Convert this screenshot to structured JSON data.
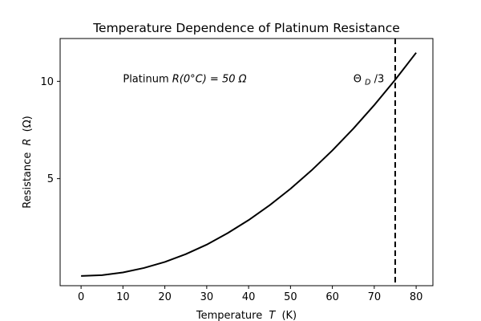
{
  "chart_data": {
    "type": "line",
    "title": "Temperature Dependence of Platinum Resistance",
    "xlabel": "Temperature",
    "xlabel_symbol": "T",
    "xlabel_unit": "(K)",
    "ylabel": "Resistance",
    "ylabel_symbol": "R",
    "ylabel_unit": "(Ω)",
    "xlim": [
      -5,
      84
    ],
    "ylim": [
      -0.5,
      12.2
    ],
    "xticks": [
      0,
      10,
      20,
      30,
      40,
      50,
      60,
      70,
      80
    ],
    "yticks": [
      5,
      10
    ],
    "grid": false,
    "series": [
      {
        "color": "#000000",
        "x": [
          0,
          5,
          10,
          15,
          20,
          25,
          30,
          35,
          40,
          45,
          50,
          55,
          60,
          65,
          70,
          75,
          80
        ],
        "y": [
          0.0,
          0.04,
          0.18,
          0.41,
          0.72,
          1.12,
          1.61,
          2.2,
          2.87,
          3.63,
          4.48,
          5.42,
          6.45,
          7.57,
          8.78,
          10.08,
          11.47
        ]
      }
    ],
    "vline": {
      "x": 75,
      "style": "dashed",
      "color": "#000000"
    },
    "annotations": [
      {
        "id": "platinum-note",
        "x": 10,
        "y": 10,
        "text_prefix": "Platinum ",
        "text_math": "R(0°C) = 50 Ω"
      },
      {
        "id": "debye-note",
        "x": 65,
        "y": 10,
        "text_main": "Θ",
        "text_sub": "D",
        "text_suffix": "/3"
      }
    ]
  }
}
